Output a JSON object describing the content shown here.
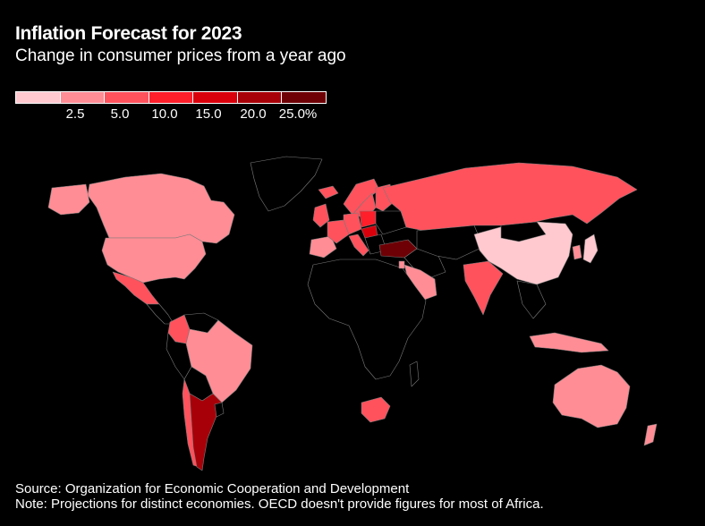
{
  "header": {
    "title": "Inflation Forecast for 2023",
    "subtitle": "Change in consumer prices from a year ago"
  },
  "legend": {
    "colors": [
      "#ffc9cf",
      "#ff8d95",
      "#ff525d",
      "#ff1f2b",
      "#d9000c",
      "#a80008",
      "#6e0005"
    ],
    "labels": [
      "2.5",
      "5.0",
      "10.0",
      "15.0",
      "20.0",
      "25.0%"
    ]
  },
  "map": {
    "no_data_color": "#000000",
    "border_color": "#7a7a7a"
  },
  "footer": {
    "source": "Source: Organization for Economic Cooperation and Development",
    "note": "Note: Projections for distinct economies. OECD doesn't provide figures for most of Africa."
  }
}
